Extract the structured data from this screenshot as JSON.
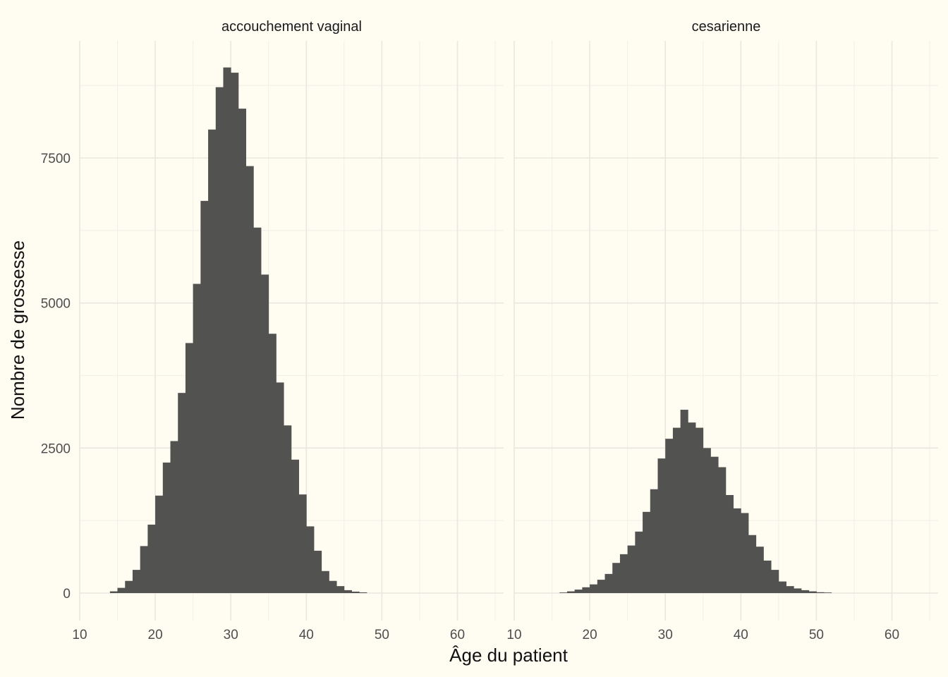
{
  "chart_data": {
    "type": "bar",
    "subtype": "histogram-facets",
    "xlabel": "Âge du patient",
    "ylabel": "Nombre de grossesse",
    "xlim": [
      10,
      65
    ],
    "ylim": [
      -400,
      9300
    ],
    "x_ticks": [
      10,
      20,
      30,
      40,
      50,
      60
    ],
    "y_ticks": [
      0,
      2500,
      5000,
      7500
    ],
    "grid": true,
    "bar_color": "#525250",
    "background": "#fffdf2",
    "bin_width": 1,
    "bin_start": 14,
    "facets": [
      {
        "name": "accouchement vaginal",
        "counts": [
          30,
          90,
          210,
          400,
          810,
          1180,
          1680,
          2250,
          2620,
          3450,
          4310,
          5330,
          6760,
          7990,
          8720,
          9060,
          8970,
          8350,
          7360,
          6300,
          5490,
          4470,
          3630,
          2890,
          2300,
          1700,
          1150,
          730,
          380,
          210,
          120,
          50,
          25,
          12
        ]
      },
      {
        "name": "cesarienne",
        "counts": [
          0,
          0,
          10,
          30,
          60,
          100,
          150,
          230,
          330,
          520,
          670,
          820,
          1060,
          1400,
          1790,
          2320,
          2660,
          2850,
          3160,
          2940,
          2850,
          2500,
          2350,
          2170,
          1690,
          1460,
          1380,
          1000,
          800,
          560,
          400,
          200,
          120,
          80,
          50,
          30,
          15,
          10
        ]
      }
    ]
  }
}
